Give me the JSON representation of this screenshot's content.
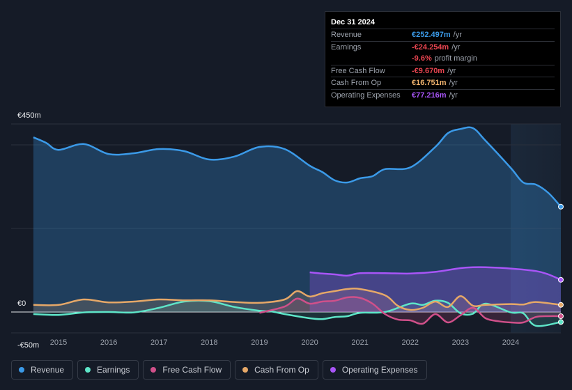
{
  "tooltip": {
    "date": "Dec 31 2024",
    "rows": [
      {
        "label": "Revenue",
        "value": "€252.497m",
        "unit": "/yr",
        "color": "#3b9ae8"
      },
      {
        "label": "Earnings",
        "value": "-€24.254m",
        "unit": "/yr",
        "color": "#e84550"
      },
      {
        "label": "",
        "value": "-9.6%",
        "unit": "profit margin",
        "color": "#e84550"
      },
      {
        "label": "Free Cash Flow",
        "value": "-€9.670m",
        "unit": "/yr",
        "color": "#e84550"
      },
      {
        "label": "Cash From Op",
        "value": "€16.751m",
        "unit": "/yr",
        "color": "#f0b36e"
      },
      {
        "label": "Operating Expenses",
        "value": "€77.216m",
        "unit": "/yr",
        "color": "#a855f7"
      }
    ]
  },
  "legend": [
    {
      "label": "Revenue",
      "color": "#3b9ae8"
    },
    {
      "label": "Earnings",
      "color": "#5ee5c8"
    },
    {
      "label": "Free Cash Flow",
      "color": "#d0508a"
    },
    {
      "label": "Cash From Op",
      "color": "#e6a868"
    },
    {
      "label": "Operating Expenses",
      "color": "#a855f7"
    }
  ],
  "chart_data": {
    "type": "area",
    "title": "",
    "y_tick_labels": [
      "€450m",
      "€0",
      "-€50m"
    ],
    "ylim": [
      -50,
      450
    ],
    "xlim": [
      2014.5,
      2025.0
    ],
    "x_ticks": [
      2015,
      2016,
      2017,
      2018,
      2019,
      2020,
      2021,
      2022,
      2023,
      2024
    ],
    "x_tick_labels": [
      "2015",
      "2016",
      "2017",
      "2018",
      "2019",
      "2020",
      "2021",
      "2022",
      "2023",
      "2024"
    ],
    "forecast_start": 2024.0,
    "series": [
      {
        "name": "Revenue",
        "color": "#3b9ae8",
        "x": [
          2014.5,
          2014.75,
          2015.0,
          2015.5,
          2016.0,
          2016.5,
          2017.0,
          2017.5,
          2018.0,
          2018.5,
          2019.0,
          2019.5,
          2020.0,
          2020.25,
          2020.5,
          2020.75,
          2021.0,
          2021.25,
          2021.5,
          2022.0,
          2022.5,
          2022.75,
          2023.0,
          2023.25,
          2023.5,
          2024.0,
          2024.25,
          2024.5,
          2024.75,
          2025.0
        ],
        "values": [
          418,
          405,
          388,
          402,
          378,
          380,
          390,
          385,
          365,
          372,
          395,
          390,
          350,
          335,
          315,
          310,
          320,
          325,
          342,
          346,
          395,
          428,
          438,
          440,
          410,
          345,
          310,
          305,
          285,
          252
        ]
      },
      {
        "name": "Earnings",
        "color": "#5ee5c8",
        "x": [
          2014.5,
          2015.0,
          2015.5,
          2016.0,
          2016.5,
          2017.0,
          2017.5,
          2018.0,
          2018.5,
          2019.0,
          2019.25,
          2019.5,
          2020.0,
          2020.25,
          2020.5,
          2020.75,
          2021.0,
          2021.5,
          2022.0,
          2022.25,
          2022.5,
          2022.75,
          2023.0,
          2023.25,
          2023.5,
          2024.0,
          2024.25,
          2024.5,
          2025.0
        ],
        "values": [
          -5,
          -7,
          -1,
          0,
          -1,
          10,
          25,
          26,
          12,
          3,
          1,
          -5,
          -15,
          -17,
          -12,
          -10,
          -2,
          0,
          20,
          17,
          27,
          22,
          -3,
          -4,
          20,
          -1,
          -3,
          -33,
          -24
        ]
      },
      {
        "name": "Free Cash Flow",
        "color": "#d0508a",
        "x": [
          2019.0,
          2019.5,
          2019.75,
          2020.0,
          2020.25,
          2020.5,
          2020.75,
          2021.0,
          2021.25,
          2021.5,
          2021.75,
          2022.0,
          2022.25,
          2022.5,
          2022.75,
          2023.0,
          2023.25,
          2023.5,
          2023.75,
          2024.0,
          2024.25,
          2024.5,
          2024.75,
          2025.0
        ],
        "values": [
          -2,
          13,
          32,
          20,
          25,
          27,
          35,
          34,
          20,
          -5,
          -18,
          -20,
          -28,
          -5,
          -25,
          -8,
          10,
          -15,
          -22,
          -25,
          -25,
          -12,
          -10,
          -10
        ]
      },
      {
        "name": "Cash From Op",
        "color": "#e6a868",
        "x": [
          2014.5,
          2015.0,
          2015.5,
          2016.0,
          2016.5,
          2017.0,
          2017.5,
          2018.0,
          2018.5,
          2019.0,
          2019.5,
          2019.75,
          2020.0,
          2020.25,
          2020.5,
          2020.75,
          2021.0,
          2021.5,
          2021.75,
          2022.0,
          2022.25,
          2022.5,
          2022.75,
          2023.0,
          2023.25,
          2023.5,
          2024.0,
          2024.25,
          2024.5,
          2025.0
        ],
        "values": [
          17,
          17,
          30,
          23,
          25,
          30,
          28,
          28,
          24,
          22,
          30,
          50,
          37,
          45,
          50,
          55,
          55,
          40,
          15,
          5,
          10,
          25,
          12,
          38,
          15,
          17,
          19,
          18,
          24,
          17
        ]
      },
      {
        "name": "Operating Expenses",
        "color": "#a855f7",
        "x": [
          2020.0,
          2020.25,
          2020.5,
          2020.75,
          2021.0,
          2021.5,
          2022.0,
          2022.5,
          2023.0,
          2023.25,
          2023.5,
          2024.0,
          2024.5,
          2024.75,
          2025.0
        ],
        "values": [
          95,
          92,
          90,
          87,
          93,
          93,
          92,
          96,
          105,
          107,
          107,
          104,
          98,
          90,
          77
        ]
      }
    ]
  }
}
